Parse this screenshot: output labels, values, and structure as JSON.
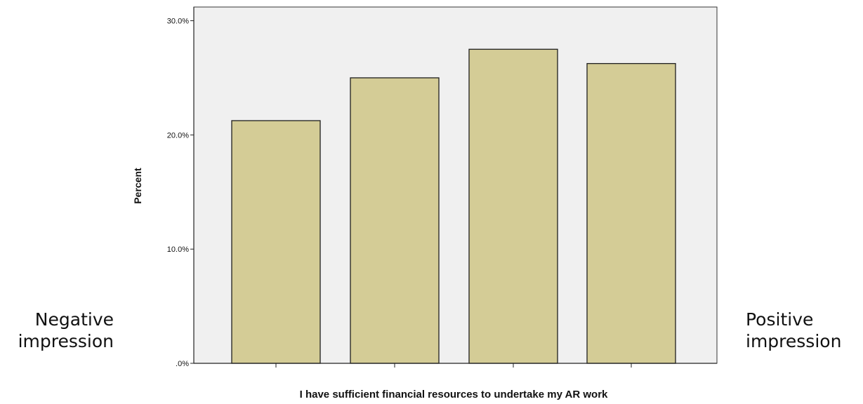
{
  "chart_data": {
    "type": "bar",
    "categories": [
      "",
      "",
      "",
      ""
    ],
    "values": [
      21.25,
      25.0,
      27.5,
      26.25
    ],
    "ylabel": "Percent",
    "xlabel": "I have sufficient financial resources to undertake my AR work",
    "ylim": [
      0,
      31.2
    ],
    "yticks": [
      0,
      10,
      20,
      30
    ],
    "ytick_labels": [
      ".0%",
      "10.0%",
      "20.0%",
      "30.0%"
    ],
    "grid": false,
    "colors": {
      "bar_fill": "#d4cc96",
      "bar_stroke": "#1e1e1e",
      "plot_bg": "#f0f0f0",
      "axis": "#222222"
    }
  },
  "annotations": {
    "left_line1": "Negative",
    "left_line2": "impression",
    "right_line1": "Positive",
    "right_line2": "impression"
  }
}
